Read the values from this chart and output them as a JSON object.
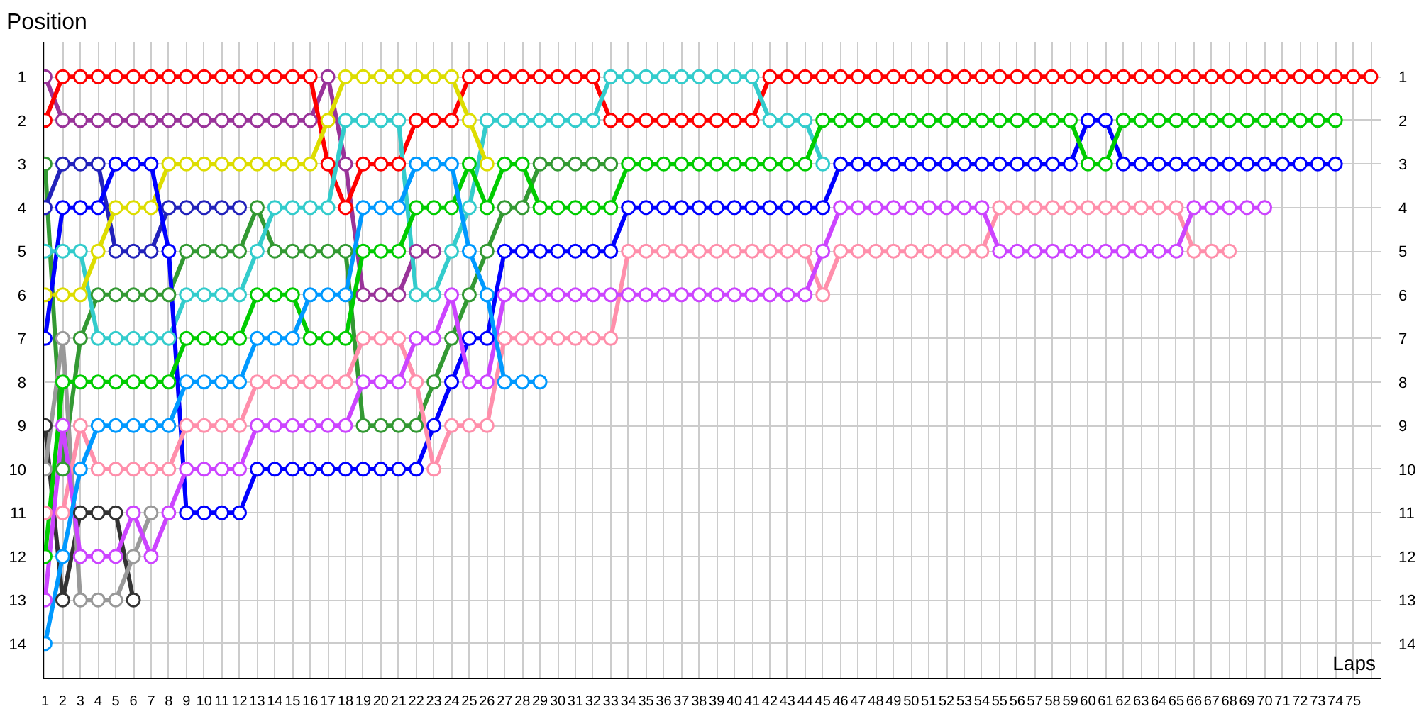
{
  "chart_data": {
    "type": "line",
    "ylabel": "Position",
    "xlabel": "Laps",
    "x": [
      1,
      2,
      3,
      4,
      5,
      6,
      7,
      8,
      9,
      10,
      11,
      12,
      13,
      14,
      15,
      16,
      17,
      18,
      19,
      20,
      21,
      22,
      23,
      24,
      25,
      26,
      27,
      28,
      29,
      30,
      31,
      32,
      33,
      34,
      35,
      36,
      37,
      38,
      39,
      40,
      41,
      42,
      43,
      44,
      45,
      46,
      47,
      48,
      49,
      50,
      51,
      52,
      53,
      54,
      55,
      56,
      57,
      58,
      59,
      60,
      61,
      62,
      63,
      64,
      65,
      66,
      67,
      68,
      69,
      70,
      71,
      72,
      73,
      74,
      75,
      76
    ],
    "xlim": [
      0.9,
      76.6
    ],
    "xticks": [
      1,
      2,
      3,
      4,
      5,
      6,
      7,
      8,
      9,
      10,
      11,
      12,
      13,
      14,
      15,
      16,
      17,
      18,
      19,
      20,
      21,
      22,
      23,
      24,
      25,
      26,
      27,
      28,
      29,
      30,
      31,
      32,
      33,
      34,
      35,
      36,
      37,
      38,
      39,
      40,
      41,
      42,
      43,
      44,
      45,
      46,
      47,
      48,
      49,
      50,
      51,
      52,
      53,
      54,
      55,
      56,
      57,
      58,
      59,
      60,
      61,
      62,
      63,
      64,
      65,
      66,
      67,
      68,
      69,
      70,
      71,
      72,
      73,
      74,
      75,
      {
        "value": 76,
        "label": null
      }
    ],
    "ylim": [
      14.8,
      0.2
    ],
    "yticks": [
      1,
      2,
      3,
      4,
      5,
      6,
      7,
      8,
      9,
      10,
      11,
      12,
      13,
      14
    ],
    "y2lim": [
      14.8,
      0.2
    ],
    "y2ticks": [
      1,
      2,
      3,
      4,
      5,
      6,
      7,
      8,
      9,
      10,
      11,
      12,
      13,
      14
    ],
    "grid": true,
    "marker": "circle",
    "line_style": "solid",
    "series": [
      {
        "color": "#993399",
        "values": [
          1,
          2,
          2,
          2,
          2,
          2,
          2,
          2,
          2,
          2,
          2,
          2,
          2,
          2,
          2,
          2,
          1,
          3,
          6,
          6,
          6,
          5,
          5,
          null,
          null,
          null,
          null,
          null,
          null,
          null,
          null,
          null,
          null,
          null,
          null,
          null,
          null,
          null,
          null,
          null,
          null,
          null,
          null,
          null,
          null,
          null,
          null,
          null,
          null,
          null,
          null,
          null,
          null,
          null,
          null,
          null,
          null,
          null,
          null,
          null,
          null,
          null,
          null,
          null,
          null,
          null,
          null,
          null,
          null,
          null,
          null,
          null,
          null,
          null,
          null,
          null
        ]
      },
      {
        "color": "#ff0000",
        "values": [
          2,
          1,
          1,
          1,
          1,
          1,
          1,
          1,
          1,
          1,
          1,
          1,
          1,
          1,
          1,
          1,
          3,
          4,
          3,
          3,
          3,
          2,
          2,
          2,
          1,
          1,
          1,
          1,
          1,
          1,
          1,
          1,
          2,
          2,
          2,
          2,
          2,
          2,
          2,
          2,
          2,
          1,
          1,
          1,
          1,
          1,
          1,
          1,
          1,
          1,
          1,
          1,
          1,
          1,
          1,
          1,
          1,
          1,
          1,
          1,
          1,
          1,
          1,
          1,
          1,
          1,
          1,
          1,
          1,
          1,
          1,
          1,
          1,
          1,
          1,
          1
        ]
      },
      {
        "color": "#339933",
        "values": [
          3,
          10,
          7,
          6,
          6,
          6,
          6,
          6,
          5,
          5,
          5,
          5,
          4,
          5,
          5,
          5,
          5,
          5,
          9,
          9,
          9,
          9,
          8,
          7,
          6,
          5,
          4,
          4,
          3,
          3,
          3,
          3,
          3,
          null,
          null,
          null,
          null,
          null,
          null,
          null,
          null,
          null,
          null,
          null,
          null,
          null,
          null,
          null,
          null,
          null,
          null,
          null,
          null,
          null,
          null,
          null,
          null,
          null,
          null,
          null,
          null,
          null,
          null,
          null,
          null,
          null,
          null,
          null,
          null,
          null,
          null,
          null,
          null,
          null,
          null,
          null
        ]
      },
      {
        "color": "#2222bb",
        "values": [
          4,
          3,
          3,
          3,
          5,
          5,
          5,
          4,
          4,
          4,
          4,
          4,
          null,
          null,
          null,
          null,
          null,
          null,
          null,
          null,
          null,
          null,
          null,
          null,
          null,
          null,
          null,
          null,
          null,
          null,
          null,
          null,
          null,
          null,
          null,
          null,
          null,
          null,
          null,
          null,
          null,
          null,
          null,
          null,
          null,
          null,
          null,
          null,
          null,
          null,
          null,
          null,
          null,
          null,
          null,
          null,
          null,
          null,
          null,
          null,
          null,
          null,
          null,
          null,
          null,
          null,
          null,
          null,
          null,
          null,
          null,
          null,
          null,
          null,
          null,
          null
        ]
      },
      {
        "color": "#33cccc",
        "values": [
          5,
          5,
          5,
          7,
          7,
          7,
          7,
          7,
          6,
          6,
          6,
          6,
          5,
          4,
          4,
          4,
          4,
          2,
          2,
          2,
          2,
          6,
          6,
          5,
          4,
          2,
          2,
          2,
          2,
          2,
          2,
          2,
          1,
          1,
          1,
          1,
          1,
          1,
          1,
          1,
          1,
          2,
          2,
          2,
          3,
          null,
          null,
          null,
          null,
          null,
          null,
          null,
          null,
          null,
          null,
          null,
          null,
          null,
          null,
          null,
          null,
          null,
          null,
          null,
          null,
          null,
          null,
          null,
          null,
          null,
          null,
          null,
          null,
          null,
          null,
          null
        ]
      },
      {
        "color": "#dddd00",
        "values": [
          6,
          6,
          6,
          5,
          4,
          4,
          4,
          3,
          3,
          3,
          3,
          3,
          3,
          3,
          3,
          3,
          2,
          1,
          1,
          1,
          1,
          1,
          1,
          1,
          2,
          3,
          null,
          null,
          null,
          null,
          null,
          null,
          null,
          null,
          null,
          null,
          null,
          null,
          null,
          null,
          null,
          null,
          null,
          null,
          null,
          null,
          null,
          null,
          null,
          null,
          null,
          null,
          null,
          null,
          null,
          null,
          null,
          null,
          null,
          null,
          null,
          null,
          null,
          null,
          null,
          null,
          null,
          null,
          null,
          null,
          null,
          null,
          null,
          null,
          null,
          null
        ]
      },
      {
        "color": "#0000ff",
        "values": [
          7,
          4,
          4,
          4,
          3,
          3,
          3,
          5,
          11,
          11,
          11,
          11,
          10,
          10,
          10,
          10,
          10,
          10,
          10,
          10,
          10,
          10,
          9,
          8,
          7,
          7,
          5,
          5,
          5,
          5,
          5,
          5,
          5,
          4,
          4,
          4,
          4,
          4,
          4,
          4,
          4,
          4,
          4,
          4,
          4,
          3,
          3,
          3,
          3,
          3,
          3,
          3,
          3,
          3,
          3,
          3,
          3,
          3,
          3,
          2,
          2,
          3,
          3,
          3,
          3,
          3,
          3,
          3,
          3,
          3,
          3,
          3,
          3,
          3,
          null,
          null
        ]
      },
      {
        "color": "#333333",
        "values": [
          9,
          13,
          11,
          11,
          11,
          13,
          null,
          null,
          null,
          null,
          null,
          null,
          null,
          null,
          null,
          null,
          null,
          null,
          null,
          null,
          null,
          null,
          null,
          null,
          null,
          null,
          null,
          null,
          null,
          null,
          null,
          null,
          null,
          null,
          null,
          null,
          null,
          null,
          null,
          null,
          null,
          null,
          null,
          null,
          null,
          null,
          null,
          null,
          null,
          null,
          null,
          null,
          null,
          null,
          null,
          null,
          null,
          null,
          null,
          null,
          null,
          null,
          null,
          null,
          null,
          null,
          null,
          null,
          null,
          null,
          null,
          null,
          null,
          null,
          null,
          null
        ]
      },
      {
        "color": "#999999",
        "values": [
          10,
          7,
          13,
          13,
          13,
          12,
          11,
          null,
          null,
          null,
          null,
          null,
          null,
          null,
          null,
          null,
          null,
          null,
          null,
          null,
          null,
          null,
          null,
          null,
          null,
          null,
          null,
          null,
          null,
          null,
          null,
          null,
          null,
          null,
          null,
          null,
          null,
          null,
          null,
          null,
          null,
          null,
          null,
          null,
          null,
          null,
          null,
          null,
          null,
          null,
          null,
          null,
          null,
          null,
          null,
          null,
          null,
          null,
          null,
          null,
          null,
          null,
          null,
          null,
          null,
          null,
          null,
          null,
          null,
          null,
          null,
          null,
          null,
          null,
          null,
          null
        ]
      },
      {
        "color": "#ff8fab",
        "values": [
          11,
          11,
          9,
          10,
          10,
          10,
          10,
          10,
          9,
          9,
          9,
          9,
          8,
          8,
          8,
          8,
          8,
          8,
          7,
          7,
          7,
          8,
          10,
          9,
          9,
          9,
          7,
          7,
          7,
          7,
          7,
          7,
          7,
          5,
          5,
          5,
          5,
          5,
          5,
          5,
          5,
          5,
          5,
          5,
          6,
          5,
          5,
          5,
          5,
          5,
          5,
          5,
          5,
          5,
          4,
          4,
          4,
          4,
          4,
          4,
          4,
          4,
          4,
          4,
          4,
          5,
          5,
          5,
          null,
          null,
          null,
          null,
          null,
          null,
          null,
          null
        ]
      },
      {
        "color": "#00cc00",
        "values": [
          12,
          8,
          8,
          8,
          8,
          8,
          8,
          8,
          7,
          7,
          7,
          7,
          6,
          6,
          6,
          7,
          7,
          7,
          5,
          5,
          5,
          4,
          4,
          4,
          3,
          4,
          3,
          3,
          4,
          4,
          4,
          4,
          4,
          3,
          3,
          3,
          3,
          3,
          3,
          3,
          3,
          3,
          3,
          3,
          2,
          2,
          2,
          2,
          2,
          2,
          2,
          2,
          2,
          2,
          2,
          2,
          2,
          2,
          2,
          3,
          3,
          2,
          2,
          2,
          2,
          2,
          2,
          2,
          2,
          2,
          2,
          2,
          2,
          2,
          null,
          null
        ]
      },
      {
        "color": "#cc44ff",
        "values": [
          13,
          9,
          12,
          12,
          12,
          11,
          12,
          11,
          10,
          10,
          10,
          10,
          9,
          9,
          9,
          9,
          9,
          9,
          8,
          8,
          8,
          7,
          7,
          6,
          8,
          8,
          6,
          6,
          6,
          6,
          6,
          6,
          6,
          6,
          6,
          6,
          6,
          6,
          6,
          6,
          6,
          6,
          6,
          6,
          5,
          4,
          4,
          4,
          4,
          4,
          4,
          4,
          4,
          4,
          5,
          5,
          5,
          5,
          5,
          5,
          5,
          5,
          5,
          5,
          5,
          4,
          4,
          4,
          4,
          4,
          null,
          null,
          null,
          null,
          null,
          null
        ]
      },
      {
        "color": "#0099ff",
        "values": [
          14,
          12,
          10,
          9,
          9,
          9,
          9,
          9,
          8,
          8,
          8,
          8,
          7,
          7,
          7,
          6,
          6,
          6,
          4,
          4,
          4,
          3,
          3,
          3,
          5,
          6,
          8,
          8,
          8,
          null,
          null,
          null,
          null,
          null,
          null,
          null,
          null,
          null,
          null,
          null,
          null,
          null,
          null,
          null,
          null,
          null,
          null,
          null,
          null,
          null,
          null,
          null,
          null,
          null,
          null,
          null,
          null,
          null,
          null,
          null,
          null,
          null,
          null,
          null,
          null,
          null,
          null,
          null,
          null,
          null,
          null,
          null,
          null,
          null,
          null,
          null
        ]
      }
    ]
  }
}
